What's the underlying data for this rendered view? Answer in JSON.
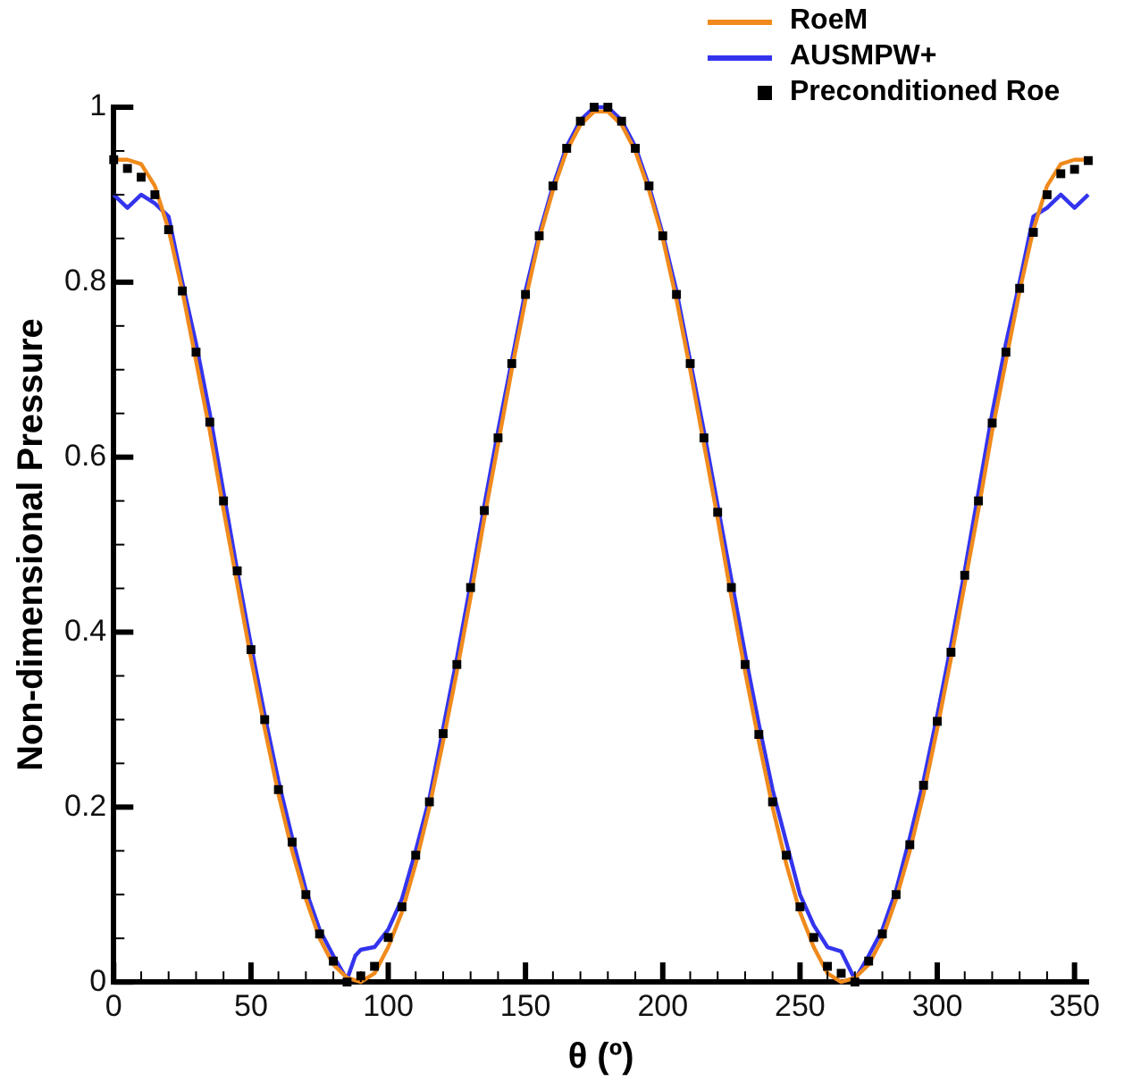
{
  "chart_data": {
    "type": "line",
    "xlabel": "θ (º)",
    "ylabel": "Non-dimensional Pressure",
    "xlim": [
      0,
      355
    ],
    "ylim": [
      0,
      1
    ],
    "xticks": [
      0,
      {
        "value": 10,
        "label": null
      },
      {
        "value": 20,
        "label": null
      },
      {
        "value": 30,
        "label": null
      },
      {
        "value": 40,
        "label": null
      },
      50,
      {
        "value": 60,
        "label": null
      },
      {
        "value": 70,
        "label": null
      },
      {
        "value": 80,
        "label": null
      },
      {
        "value": 90,
        "label": null
      },
      100,
      {
        "value": 110,
        "label": null
      },
      {
        "value": 120,
        "label": null
      },
      {
        "value": 130,
        "label": null
      },
      {
        "value": 140,
        "label": null
      },
      150,
      {
        "value": 160,
        "label": null
      },
      {
        "value": 170,
        "label": null
      },
      {
        "value": 180,
        "label": null
      },
      {
        "value": 190,
        "label": null
      },
      200,
      {
        "value": 210,
        "label": null
      },
      {
        "value": 220,
        "label": null
      },
      {
        "value": 230,
        "label": null
      },
      {
        "value": 240,
        "label": null
      },
      250,
      {
        "value": 260,
        "label": null
      },
      {
        "value": 270,
        "label": null
      },
      {
        "value": 280,
        "label": null
      },
      {
        "value": 290,
        "label": null
      },
      300,
      {
        "value": 310,
        "label": null
      },
      {
        "value": 320,
        "label": null
      },
      {
        "value": 330,
        "label": null
      },
      {
        "value": 340,
        "label": null
      },
      350
    ],
    "yticks": [
      0,
      {
        "value": 0.05,
        "label": null
      },
      {
        "value": 0.1,
        "label": null
      },
      {
        "value": 0.15,
        "label": null
      },
      0.2,
      {
        "value": 0.25,
        "label": null
      },
      {
        "value": 0.3,
        "label": null
      },
      {
        "value": 0.35,
        "label": null
      },
      0.4,
      {
        "value": 0.45,
        "label": null
      },
      {
        "value": 0.5,
        "label": null
      },
      {
        "value": 0.55,
        "label": null
      },
      0.6,
      {
        "value": 0.65,
        "label": null
      },
      {
        "value": 0.7,
        "label": null
      },
      {
        "value": 0.75,
        "label": null
      },
      0.8,
      {
        "value": 0.85,
        "label": null
      },
      {
        "value": 0.9,
        "label": null
      },
      {
        "value": 0.95,
        "label": null
      },
      1
    ],
    "grid": false,
    "legend": "top right",
    "line_style": "solid",
    "series": [
      {
        "name": "RoeM",
        "type": "line",
        "marker": "none",
        "color": "#f08a1c",
        "x": [
          0,
          5,
          10,
          15,
          20,
          25,
          30,
          35,
          40,
          45,
          50,
          55,
          60,
          65,
          70,
          75,
          80,
          85,
          90,
          95,
          100,
          105,
          110,
          115,
          120,
          125,
          130,
          135,
          140,
          145,
          150,
          155,
          160,
          165,
          170,
          175,
          180,
          185,
          190,
          195,
          200,
          205,
          210,
          215,
          220,
          225,
          230,
          235,
          240,
          245,
          250,
          255,
          260,
          265,
          270,
          275,
          280,
          285,
          290,
          295,
          300,
          305,
          310,
          315,
          320,
          325,
          330,
          335,
          340,
          345,
          350,
          355
        ],
        "values": [
          0.94,
          0.94,
          0.935,
          0.91,
          0.86,
          0.79,
          0.71,
          0.63,
          0.54,
          0.455,
          0.37,
          0.29,
          0.215,
          0.15,
          0.095,
          0.05,
          0.02,
          0.005,
          0,
          0.01,
          0.04,
          0.08,
          0.135,
          0.2,
          0.275,
          0.355,
          0.44,
          0.53,
          0.615,
          0.7,
          0.78,
          0.85,
          0.905,
          0.95,
          0.98,
          0.995,
          0.995,
          0.98,
          0.95,
          0.905,
          0.85,
          0.78,
          0.7,
          0.615,
          0.53,
          0.44,
          0.355,
          0.275,
          0.2,
          0.135,
          0.08,
          0.04,
          0.01,
          0,
          0.005,
          0.02,
          0.05,
          0.095,
          0.15,
          0.215,
          0.29,
          0.37,
          0.455,
          0.54,
          0.63,
          0.71,
          0.79,
          0.86,
          0.91,
          0.935,
          0.94,
          0.94
        ]
      },
      {
        "name": "AUSMPW+",
        "type": "line",
        "marker": "none",
        "color": "#3434ee",
        "x": [
          0,
          5,
          10,
          15,
          20,
          25,
          30,
          35,
          40,
          45,
          50,
          55,
          60,
          65,
          70,
          75,
          80,
          85,
          88,
          90,
          95,
          100,
          105,
          110,
          115,
          120,
          125,
          130,
          135,
          140,
          145,
          150,
          155,
          160,
          165,
          170,
          175,
          180,
          185,
          190,
          195,
          200,
          205,
          210,
          215,
          220,
          225,
          230,
          235,
          240,
          245,
          250,
          255,
          260,
          265,
          270,
          275,
          280,
          285,
          290,
          295,
          300,
          305,
          310,
          315,
          320,
          325,
          330,
          335,
          340,
          345,
          350,
          355
        ],
        "values": [
          0.9,
          0.885,
          0.9,
          0.89,
          0.875,
          0.8,
          0.73,
          0.65,
          0.56,
          0.47,
          0.385,
          0.305,
          0.23,
          0.165,
          0.105,
          0.06,
          0.03,
          0.003,
          0.03,
          0.037,
          0.04,
          0.06,
          0.095,
          0.15,
          0.21,
          0.29,
          0.37,
          0.455,
          0.545,
          0.63,
          0.71,
          0.79,
          0.855,
          0.91,
          0.955,
          0.985,
          1,
          1,
          0.985,
          0.955,
          0.91,
          0.855,
          0.79,
          0.71,
          0.63,
          0.545,
          0.46,
          0.375,
          0.295,
          0.22,
          0.16,
          0.1,
          0.065,
          0.04,
          0.035,
          0.003,
          0.03,
          0.06,
          0.105,
          0.165,
          0.23,
          0.305,
          0.385,
          0.47,
          0.56,
          0.65,
          0.73,
          0.8,
          0.875,
          0.885,
          0.9,
          0.885,
          0.9
        ]
      },
      {
        "name": "Preconditioned Roe",
        "type": "scatter",
        "marker": "square",
        "color": "#000000",
        "x": [
          0,
          5,
          10,
          15,
          20,
          25,
          30,
          35,
          40,
          45,
          50,
          55,
          60,
          65,
          70,
          75,
          80,
          85,
          90,
          95,
          100,
          105,
          110,
          115,
          120,
          125,
          130,
          135,
          140,
          145,
          150,
          155,
          160,
          165,
          170,
          175,
          180,
          185,
          190,
          195,
          200,
          205,
          210,
          215,
          220,
          225,
          230,
          235,
          240,
          245,
          250,
          255,
          260,
          265,
          270,
          275,
          280,
          285,
          290,
          295,
          300,
          305,
          310,
          315,
          320,
          325,
          330,
          335,
          340,
          345,
          350,
          355
        ],
        "values": [
          0.94,
          0.93,
          0.92,
          0.9,
          0.86,
          0.79,
          0.72,
          0.64,
          0.55,
          0.47,
          0.38,
          0.3,
          0.22,
          0.16,
          0.1,
          0.055,
          0.024,
          0,
          0.007,
          0.018,
          0.051,
          0.086,
          0.145,
          0.206,
          0.284,
          0.363,
          0.451,
          0.539,
          0.622,
          0.707,
          0.786,
          0.853,
          0.91,
          0.953,
          0.984,
          1,
          1,
          0.984,
          0.953,
          0.91,
          0.853,
          0.786,
          0.707,
          0.622,
          0.537,
          0.451,
          0.363,
          0.283,
          0.206,
          0.145,
          0.086,
          0.051,
          0.018,
          0.01,
          0,
          0.024,
          0.055,
          0.1,
          0.157,
          0.225,
          0.298,
          0.377,
          0.465,
          0.55,
          0.639,
          0.72,
          0.793,
          0.857,
          0.9,
          0.924,
          0.929,
          0.939
        ]
      }
    ]
  }
}
